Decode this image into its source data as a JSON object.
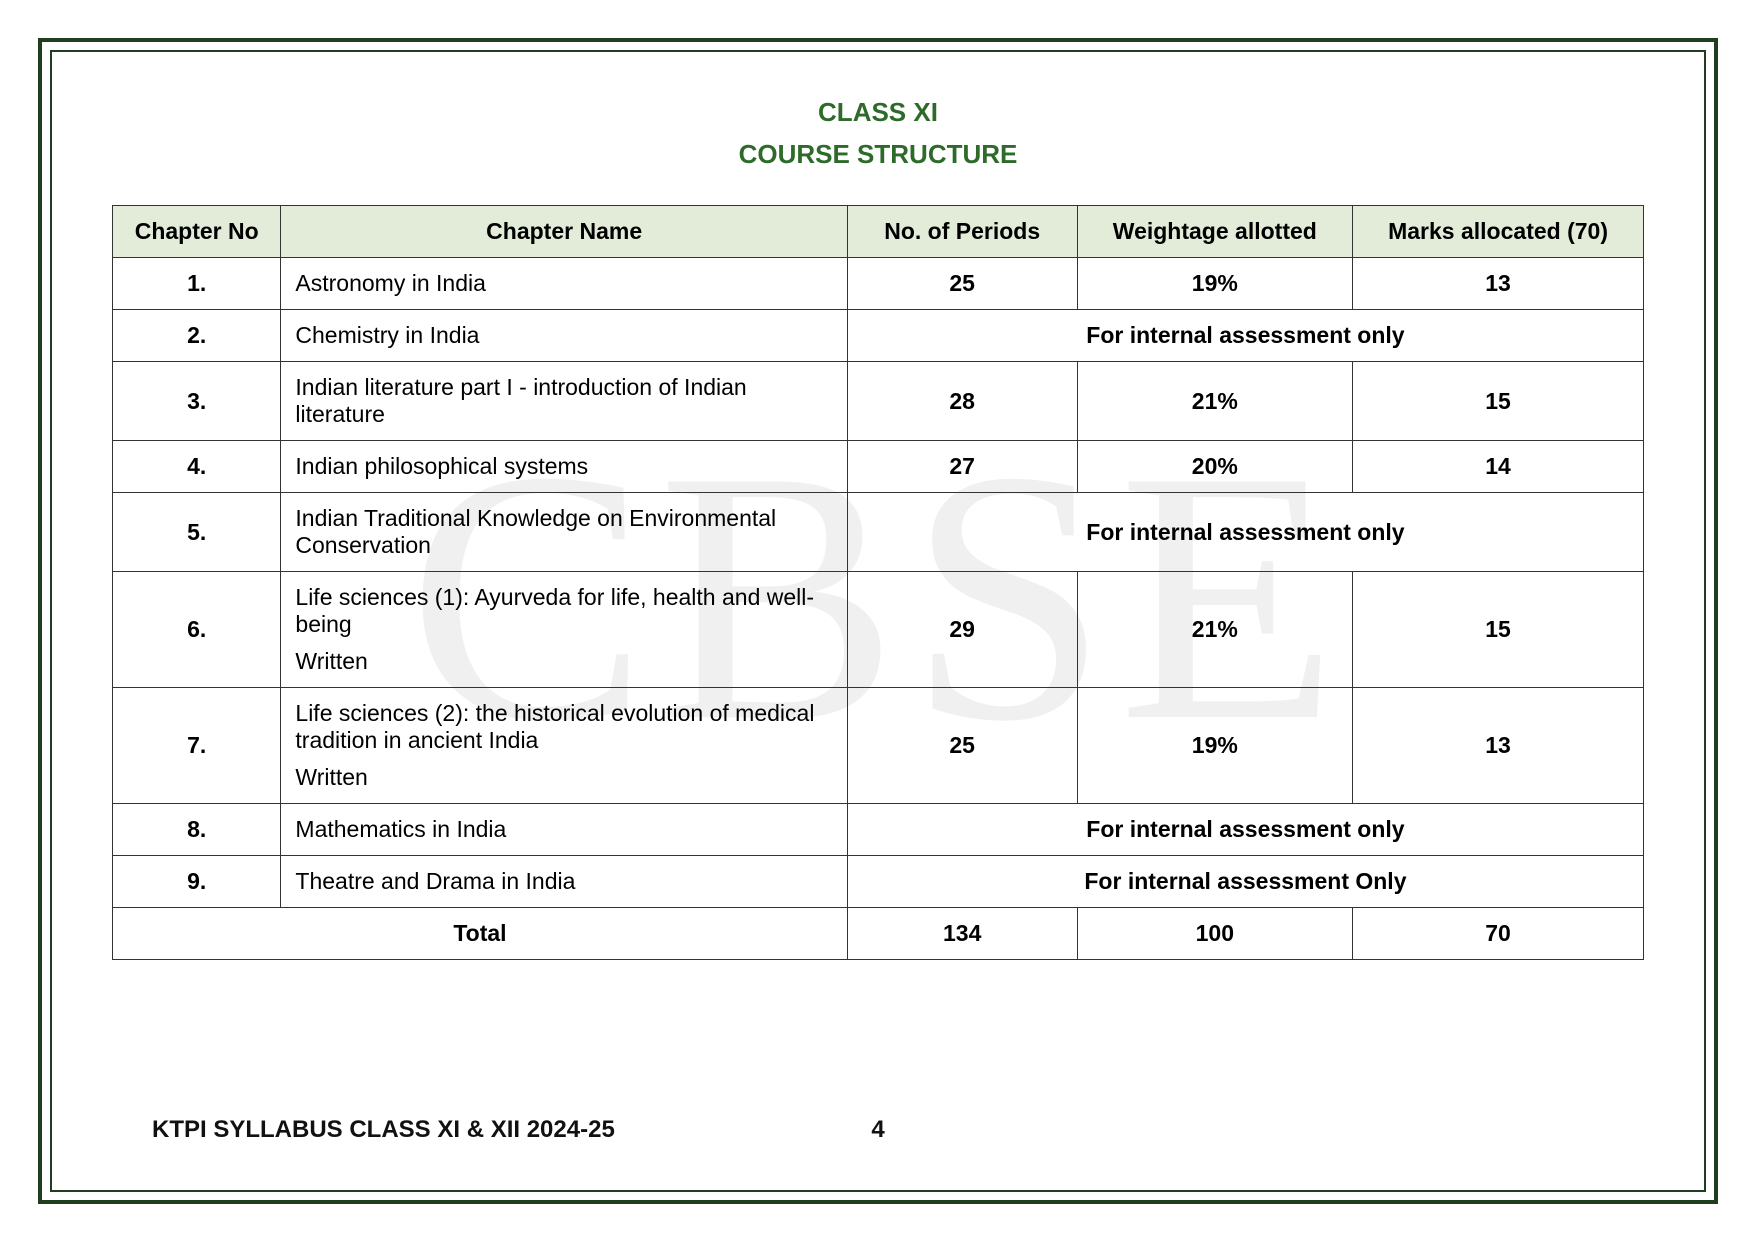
{
  "watermark_text": "CBSE",
  "title": {
    "line1": "CLASS XI",
    "line2": "COURSE STRUCTURE"
  },
  "colors": {
    "frame_border": "#1f3d1f",
    "title_color": "#2e6b2b",
    "header_bg": "#e2ecd8",
    "table_border": "#333333",
    "text": "#000000",
    "watermark": "rgba(0,0,0,0.06)",
    "background": "#ffffff"
  },
  "typography": {
    "title_fontsize": 26,
    "cell_fontsize": 23,
    "footer_fontsize": 24,
    "font_family": "Arial"
  },
  "table": {
    "type": "table",
    "columns": [
      {
        "key": "no",
        "label": "Chapter No",
        "width_pct": 11,
        "align": "center"
      },
      {
        "key": "name",
        "label": "Chapter Name",
        "width_pct": 37,
        "align": "left"
      },
      {
        "key": "periods",
        "label": "No. of Periods",
        "width_pct": 15,
        "align": "center"
      },
      {
        "key": "weight",
        "label": "Weightage allotted",
        "width_pct": 18,
        "align": "center"
      },
      {
        "key": "marks",
        "label": "Marks allocated (70)",
        "width_pct": 19,
        "align": "center"
      }
    ],
    "rows": [
      {
        "no": "1.",
        "name": "Astronomy in India",
        "periods": "25",
        "weight": "19%",
        "marks": "13"
      },
      {
        "no": "2.",
        "name": "Chemistry in India",
        "merged": "For internal assessment only"
      },
      {
        "no": "3.",
        "name": "Indian literature part I - introduction of Indian literature",
        "periods": "28",
        "weight": "21%",
        "marks": "15"
      },
      {
        "no": "4.",
        "name": "Indian philosophical systems",
        "periods": "27",
        "weight": "20%",
        "marks": "14"
      },
      {
        "no": "5.",
        "name": "Indian Traditional Knowledge on Environmental Conservation",
        "merged": "For internal assessment only"
      },
      {
        "no": "6.",
        "name": "Life sciences (1): Ayurveda for life, health and well-being",
        "name_sub": "Written",
        "periods": "29",
        "weight": "21%",
        "marks": "15"
      },
      {
        "no": "7.",
        "name": "Life sciences (2): the historical evolution of medical tradition in ancient India",
        "name_sub": "Written",
        "periods": "25",
        "weight": "19%",
        "marks": "13"
      },
      {
        "no": "8.",
        "name": "Mathematics in India",
        "merged": "For internal assessment only"
      },
      {
        "no": "9.",
        "name": "Theatre and Drama in India",
        "merged": "For internal assessment Only"
      }
    ],
    "total": {
      "label": "Total",
      "periods": "134",
      "weight": "100",
      "marks": "70"
    }
  },
  "footer": {
    "text": "KTPI SYLLABUS CLASS XI & XII 2024-25",
    "page": "4"
  }
}
